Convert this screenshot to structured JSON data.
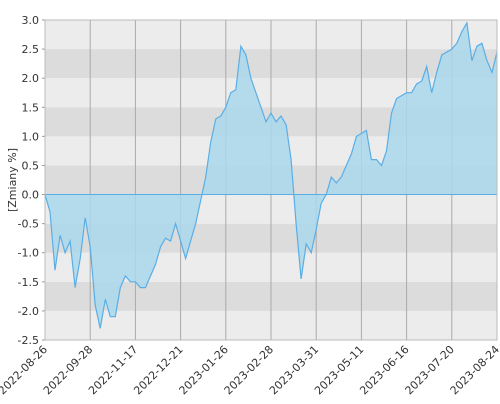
{
  "chart_data": {
    "type": "area",
    "y_label": "[Zmiany %]",
    "categories": [
      "2022-08-26",
      null,
      null,
      null,
      null,
      null,
      null,
      null,
      null,
      "2022-09-28",
      null,
      null,
      null,
      null,
      null,
      null,
      null,
      null,
      "2022-11-17",
      null,
      null,
      null,
      null,
      null,
      null,
      null,
      null,
      "2022-12-21",
      null,
      null,
      null,
      null,
      null,
      null,
      null,
      null,
      "2023-01-26",
      null,
      null,
      null,
      null,
      null,
      null,
      null,
      null,
      "2023-02-28",
      null,
      null,
      null,
      null,
      null,
      null,
      null,
      null,
      "2023-03-31",
      null,
      null,
      null,
      null,
      null,
      null,
      null,
      null,
      "2023-05-11",
      null,
      null,
      null,
      null,
      null,
      null,
      null,
      null,
      "2023-06-16",
      null,
      null,
      null,
      null,
      null,
      null,
      null,
      null,
      "2023-07-20",
      null,
      null,
      null,
      null,
      null,
      null,
      null,
      null,
      "2023-08-24"
    ],
    "values": [
      0,
      -0.3,
      -1.3,
      -0.7,
      -1.0,
      -0.8,
      -1.6,
      -1.1,
      -0.4,
      -0.9,
      -1.9,
      -2.3,
      -1.8,
      -2.1,
      -2.1,
      -1.6,
      -1.4,
      -1.5,
      -1.5,
      -1.6,
      -1.6,
      -1.4,
      -1.2,
      -0.9,
      -0.75,
      -0.8,
      -0.5,
      -0.8,
      -1.1,
      -0.8,
      -0.5,
      -0.1,
      0.3,
      0.9,
      1.3,
      1.35,
      1.5,
      1.75,
      1.8,
      2.55,
      2.4,
      2.0,
      1.75,
      1.5,
      1.25,
      1.4,
      1.25,
      1.35,
      1.2,
      0.6,
      -0.5,
      -1.45,
      -0.85,
      -1.0,
      -0.6,
      -0.15,
      0.0,
      0.3,
      0.2,
      0.3,
      0.5,
      0.7,
      1.0,
      1.05,
      1.1,
      0.6,
      0.6,
      0.5,
      0.75,
      1.4,
      1.65,
      1.7,
      1.75,
      1.75,
      1.9,
      1.95,
      2.2,
      1.75,
      2.1,
      2.4,
      2.45,
      2.5,
      2.6,
      2.8,
      2.95,
      2.3,
      2.55,
      2.6,
      2.3,
      2.1,
      2.45
    ],
    "color": "#5aaee6",
    "fill": "#a9d8ec",
    "band_colors": [
      "#ececec",
      "#dcdcdc"
    ],
    "ylim": [
      -2.5,
      3.0
    ],
    "yticks": [
      {
        "value": -2.5,
        "label": "-2.5"
      },
      {
        "value": -2.0,
        "label": "-2.0"
      },
      {
        "value": -1.5,
        "label": "-1.5"
      },
      {
        "value": -1.0,
        "label": "-1.0"
      },
      {
        "value": -0.5,
        "label": "-0.5"
      },
      {
        "value": 0.0,
        "label": "0.0"
      },
      {
        "value": 0.5,
        "label": "0.5"
      },
      {
        "value": 1.0,
        "label": "1.0"
      },
      {
        "value": 1.5,
        "label": "1.5"
      },
      {
        "value": 2.0,
        "label": "2.0"
      },
      {
        "value": 2.5,
        "label": "2.5"
      },
      {
        "value": 3.0,
        "label": "3.0"
      }
    ],
    "grid": true
  }
}
